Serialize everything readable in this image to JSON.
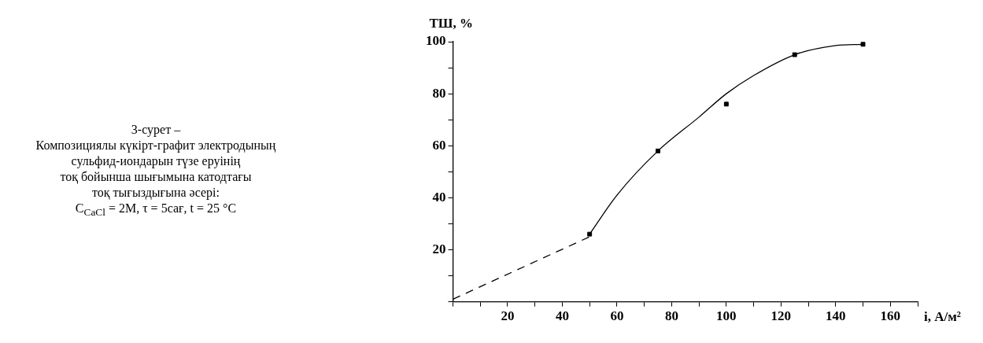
{
  "chart_data": {
    "type": "scatter",
    "xlabel": "i, А/м²",
    "ylabel": "ТШ, %",
    "annotations": [
      "3-сурет –\nКомпозициялы күкірт-графит электродының\nсульфид-иондарын түзе еруінің\nтоқ бойынша шығымына катодтағы\nтоқ тығыздығына әсері:\nC$_{CaCl}$ = 2М, τ = 5сағ, t = 25 °C"
    ],
    "xlim": [
      0,
      170
    ],
    "ylim": [
      0,
      100
    ],
    "xticks": [
      {
        "value": 0,
        "label": null
      },
      {
        "value": 10,
        "label": null
      },
      20,
      {
        "value": 30,
        "label": null
      },
      40,
      {
        "value": 50,
        "label": null
      },
      60,
      {
        "value": 70,
        "label": null
      },
      80,
      {
        "value": 90,
        "label": null
      },
      100,
      {
        "value": 110,
        "label": null
      },
      120,
      {
        "value": 130,
        "label": null
      },
      140,
      {
        "value": 150,
        "label": null
      },
      160,
      {
        "value": 170,
        "label": null
      }
    ],
    "yticks": [
      {
        "value": 0,
        "label": null
      },
      {
        "value": 10,
        "label": null
      },
      20,
      {
        "value": 30,
        "label": null
      },
      40,
      {
        "value": 50,
        "label": null
      },
      60,
      {
        "value": 70,
        "label": null
      },
      80,
      {
        "value": 90,
        "label": null
      },
      100
    ],
    "grid": false,
    "legend": false,
    "series": [
      {
        "type": "scatter",
        "color": "#000000",
        "marker": "square",
        "x": [
          50,
          75,
          100,
          125,
          150
        ],
        "values": [
          26,
          58,
          76,
          95,
          99
        ]
      },
      {
        "type": "line",
        "color": "#000000",
        "marker": "none",
        "line_style": "solid",
        "x": [
          50,
          60,
          75,
          90,
          100,
          110,
          125,
          140,
          150
        ],
        "values": [
          26,
          41,
          58,
          71,
          80,
          87,
          95,
          98.5,
          99
        ]
      },
      {
        "type": "line",
        "color": "#000000",
        "marker": "none",
        "line_style": "dashed",
        "x": [
          0,
          50
        ],
        "values": [
          1,
          25
        ]
      }
    ]
  }
}
